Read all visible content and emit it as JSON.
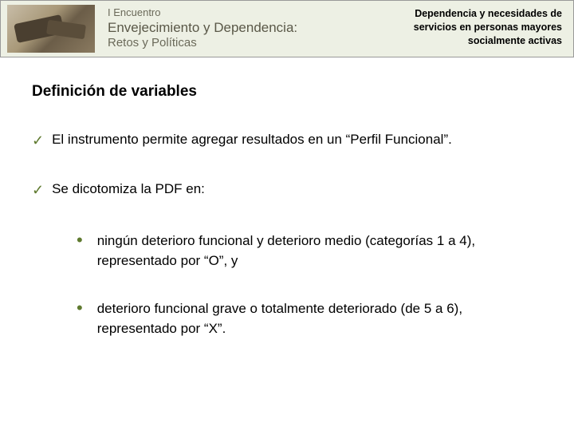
{
  "header": {
    "logo_line1": "I Encuentro",
    "logo_line2": "Envejecimiento y Dependencia:",
    "logo_line3": "Retos y Políticas",
    "right_line1": "Dependencia y necesidades de",
    "right_line2": "servicios en personas mayores",
    "right_line3": "socialmente activas"
  },
  "content": {
    "section_title": "Definición de variables",
    "check1": "El instrumento permite agregar resultados en un “Perfil Funcional”.",
    "check2": "Se dicotomiza la PDF en:",
    "bullet1": "ningún deterioro funcional y deterioro medio (categorías 1 a 4), representado por “O”, y",
    "bullet2": "deterioro funcional grave o totalmente deteriorado (de 5 a 6), representado por “X”."
  },
  "colors": {
    "header_bg": "#edf0e4",
    "accent_green": "#5f7a2f",
    "logo_text": "#5a5848"
  }
}
